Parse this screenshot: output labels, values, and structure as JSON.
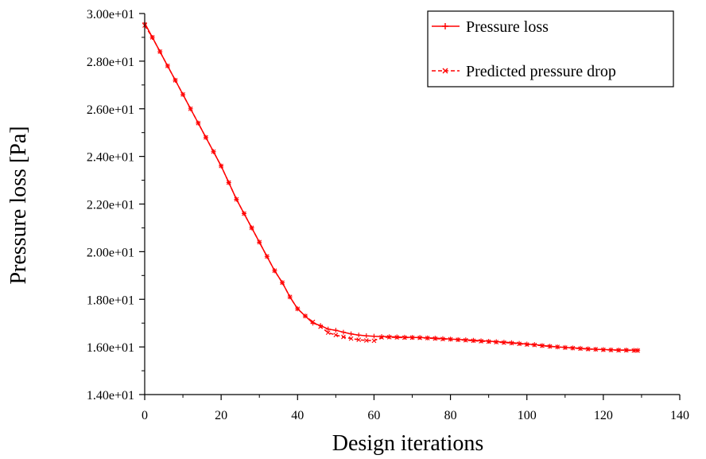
{
  "chart_data": {
    "type": "line",
    "xlabel": "Design iterations",
    "ylabel": "Pressure loss [Pa]",
    "xlim": [
      0,
      140
    ],
    "ylim": [
      14.0,
      30.0
    ],
    "x_ticks": [
      0,
      20,
      40,
      60,
      80,
      100,
      120,
      140
    ],
    "x_tick_labels": [
      "0",
      "20",
      "40",
      "60",
      "80",
      "100",
      "120",
      "140"
    ],
    "y_ticks": [
      14,
      16,
      18,
      20,
      22,
      24,
      26,
      28,
      30
    ],
    "y_tick_labels": [
      "1.40e+01",
      "1.60e+01",
      "1.80e+01",
      "2.00e+01",
      "2.20e+01",
      "2.40e+01",
      "2.60e+01",
      "2.80e+01",
      "3.00e+01"
    ],
    "grid": false,
    "legend_position": "top-right",
    "series": [
      {
        "name": "Pressure loss",
        "color": "#ff0000",
        "line_style": "solid",
        "marker": "plus",
        "x": [
          0,
          2,
          4,
          6,
          8,
          10,
          12,
          14,
          16,
          18,
          20,
          22,
          24,
          26,
          28,
          30,
          32,
          34,
          36,
          38,
          40,
          42,
          44,
          46,
          48,
          50,
          52,
          54,
          56,
          58,
          60,
          62,
          64,
          66,
          68,
          70,
          72,
          74,
          76,
          78,
          80,
          82,
          84,
          86,
          88,
          90,
          92,
          94,
          96,
          98,
          100,
          102,
          104,
          106,
          108,
          110,
          112,
          114,
          116,
          118,
          120,
          122,
          124,
          126,
          128,
          129
        ],
        "y": [
          29.6,
          29.0,
          28.4,
          27.8,
          27.2,
          26.6,
          26.0,
          25.4,
          24.8,
          24.2,
          23.6,
          22.9,
          22.2,
          21.6,
          21.0,
          20.4,
          19.8,
          19.2,
          18.7,
          18.1,
          17.6,
          17.3,
          17.0,
          16.9,
          16.75,
          16.7,
          16.62,
          16.55,
          16.5,
          16.47,
          16.45,
          16.44,
          16.43,
          16.42,
          16.41,
          16.4,
          16.4,
          16.38,
          16.37,
          16.35,
          16.33,
          16.31,
          16.3,
          16.28,
          16.26,
          16.24,
          16.22,
          16.2,
          16.18,
          16.15,
          16.12,
          16.1,
          16.06,
          16.03,
          16.0,
          15.98,
          15.96,
          15.94,
          15.92,
          15.9,
          15.89,
          15.88,
          15.87,
          15.87,
          15.86,
          15.86
        ]
      },
      {
        "name": "Predicted  pressure drop",
        "color": "#ff0000",
        "line_style": "dashed",
        "marker": "x",
        "x": [
          0,
          2,
          4,
          6,
          8,
          10,
          12,
          14,
          16,
          18,
          20,
          22,
          24,
          26,
          28,
          30,
          32,
          34,
          36,
          38,
          40,
          42,
          44,
          46,
          48,
          50,
          52,
          54,
          56,
          58,
          60,
          62,
          64,
          66,
          68,
          70,
          72,
          74,
          76,
          78,
          80,
          82,
          84,
          86,
          88,
          90,
          92,
          94,
          96,
          98,
          100,
          102,
          104,
          106,
          108,
          110,
          112,
          114,
          116,
          118,
          120,
          122,
          124,
          126,
          128,
          129
        ],
        "y": [
          29.5,
          29.0,
          28.4,
          27.8,
          27.2,
          26.6,
          26.0,
          25.4,
          24.8,
          24.2,
          23.6,
          22.9,
          22.2,
          21.6,
          21.0,
          20.4,
          19.8,
          19.2,
          18.7,
          18.1,
          17.6,
          17.3,
          17.05,
          16.85,
          16.6,
          16.5,
          16.42,
          16.35,
          16.3,
          16.27,
          16.26,
          16.4,
          16.41,
          16.4,
          16.39,
          16.39,
          16.38,
          16.37,
          16.35,
          16.33,
          16.32,
          16.3,
          16.28,
          16.26,
          16.24,
          16.22,
          16.2,
          16.18,
          16.16,
          16.13,
          16.1,
          16.08,
          16.05,
          16.02,
          16.0,
          15.97,
          15.95,
          15.93,
          15.91,
          15.9,
          15.88,
          15.87,
          15.86,
          15.86,
          15.85,
          15.85
        ]
      }
    ]
  }
}
